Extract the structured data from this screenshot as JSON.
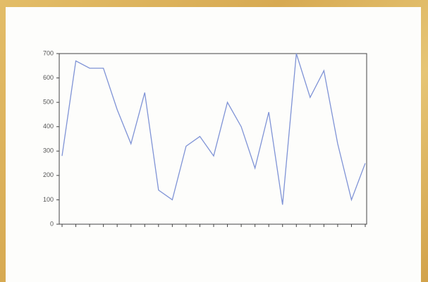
{
  "chart_data": {
    "type": "line",
    "categories": [
      null,
      null,
      null,
      null,
      null,
      null,
      null,
      null,
      null,
      null,
      null,
      null,
      null,
      null,
      null,
      null,
      null,
      null,
      null,
      null,
      null,
      null,
      null
    ],
    "values": [
      280,
      670,
      640,
      640,
      470,
      330,
      540,
      140,
      100,
      320,
      360,
      280,
      500,
      400,
      230,
      460,
      80,
      700,
      520,
      630,
      330,
      100,
      250
    ],
    "color": "#7f93d6",
    "ylim": [
      0,
      700
    ],
    "yticks": [
      0,
      100,
      200,
      300,
      400,
      500,
      600,
      700
    ]
  }
}
